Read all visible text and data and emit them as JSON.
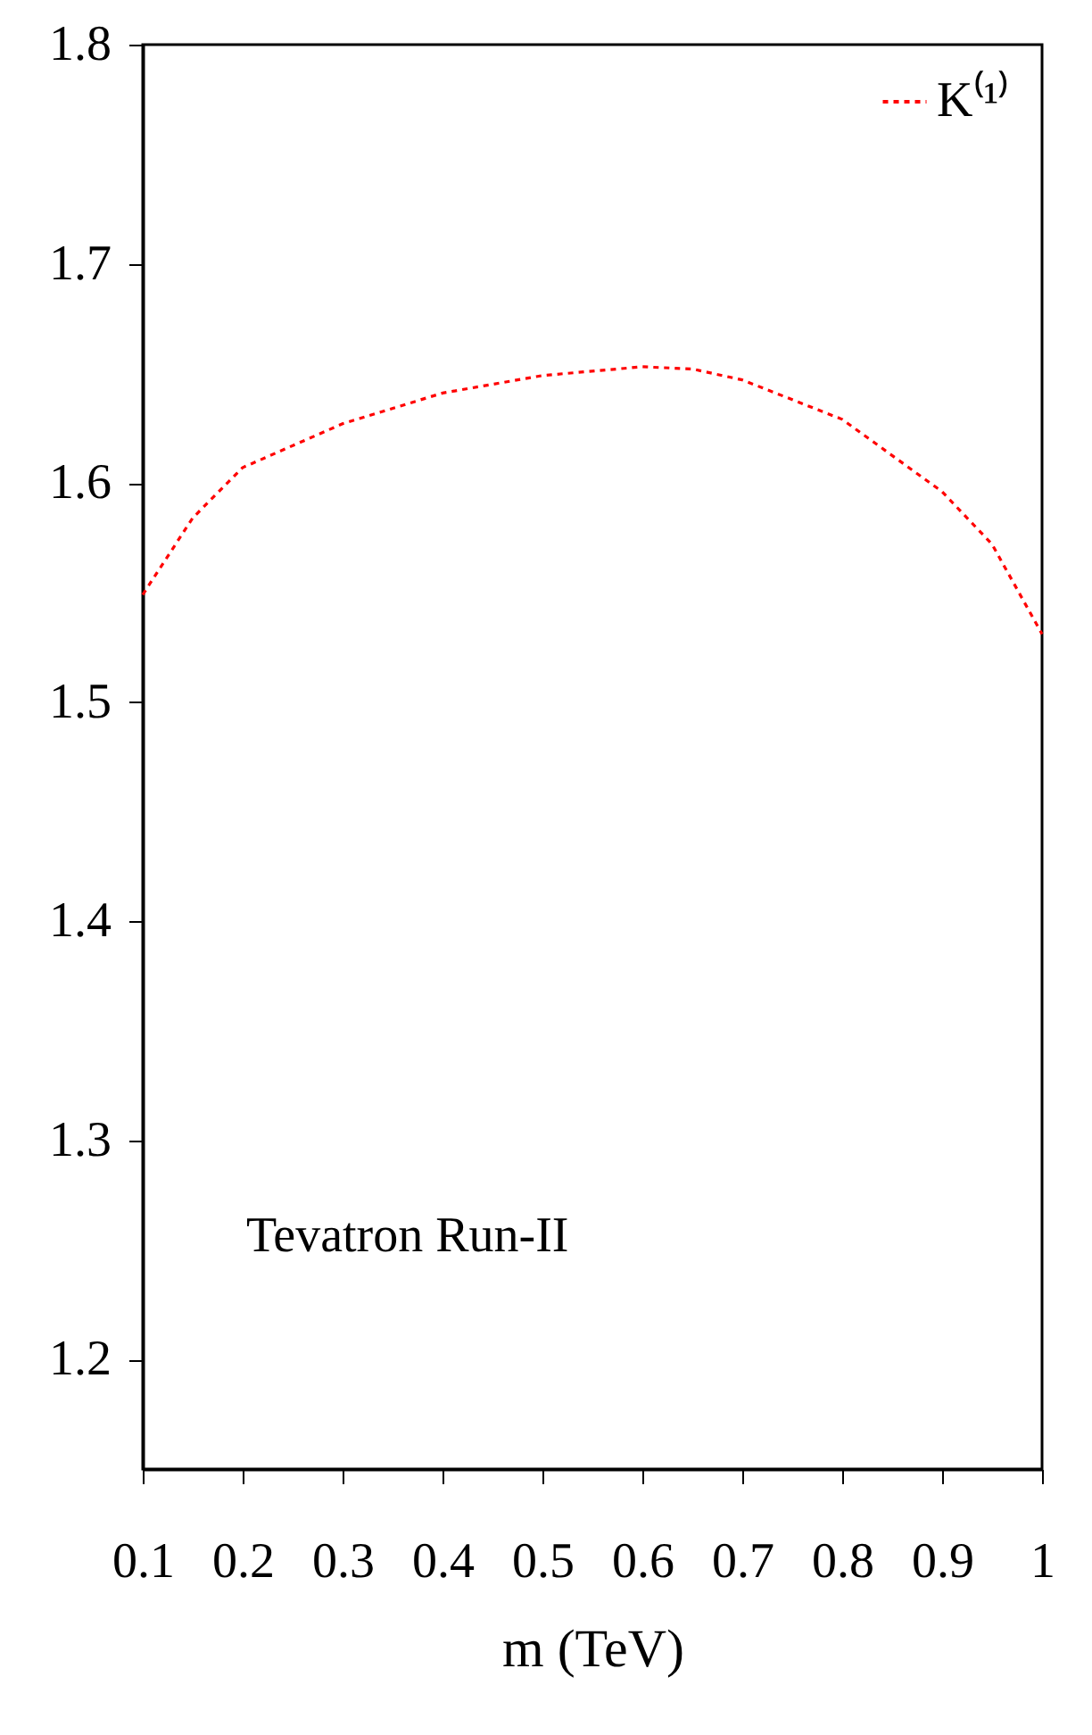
{
  "chart_data": {
    "type": "line",
    "xlabel": "m (TeV)",
    "x": [
      0.1,
      0.15,
      0.2,
      0.3,
      0.4,
      0.5,
      0.6,
      0.65,
      0.7,
      0.8,
      0.9,
      0.95,
      1.0
    ],
    "series": [
      {
        "name": "K⁽¹⁾",
        "color": "#ff0000",
        "values": [
          1.549,
          1.584,
          1.607,
          1.627,
          1.641,
          1.649,
          1.653,
          1.652,
          1.647,
          1.629,
          1.596,
          1.572,
          1.531
        ]
      }
    ],
    "xlim": [
      0.1,
      1.0
    ],
    "xticks": [
      0.1,
      0.2,
      0.3,
      0.4,
      0.5,
      0.6,
      0.7,
      0.8,
      0.9,
      1
    ],
    "ylim": [
      1.15,
      1.8
    ],
    "yticks": [
      1.2,
      1.3,
      1.4,
      1.5,
      1.6,
      1.7,
      1.8
    ],
    "annotations": [
      "Tevatron Run-II"
    ],
    "legend": "top right",
    "grid": false,
    "marker": "none",
    "line_style": "dotted"
  }
}
